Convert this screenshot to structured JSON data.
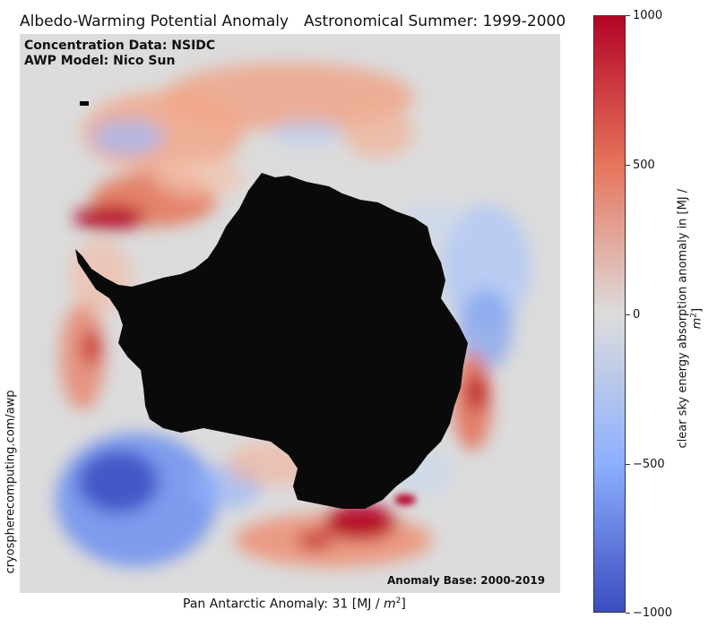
{
  "header": {
    "title_left": "Albedo-Warming Potential Anomaly",
    "title_right": "Astronomical Summer: 1999-2000"
  },
  "map": {
    "concentration_label": "Concentration Data: NSIDC",
    "model_label": "AWP Model: Nico Sun",
    "base_label": "Anomaly Base: 2000-2019",
    "credit": "cryospherecomputing.com/awp",
    "land_color": "#0a0a0a",
    "neutral_color": "#dcdcdc"
  },
  "footer": {
    "anomaly_prefix": "Pan Antarctic Anomaly: 31 [MJ / ",
    "anomaly_unit_base": "m",
    "anomaly_unit_exp": "2",
    "anomaly_suffix": "]"
  },
  "colorbar": {
    "ticks": [
      "1000",
      "500",
      "0",
      "−500",
      "−1000"
    ],
    "label_prefix": "clear sky energy absorption anomaly in [MJ / ",
    "label_unit_base": "m",
    "label_unit_exp": "2",
    "label_suffix": "]",
    "min": -1000,
    "max": 1000
  }
}
